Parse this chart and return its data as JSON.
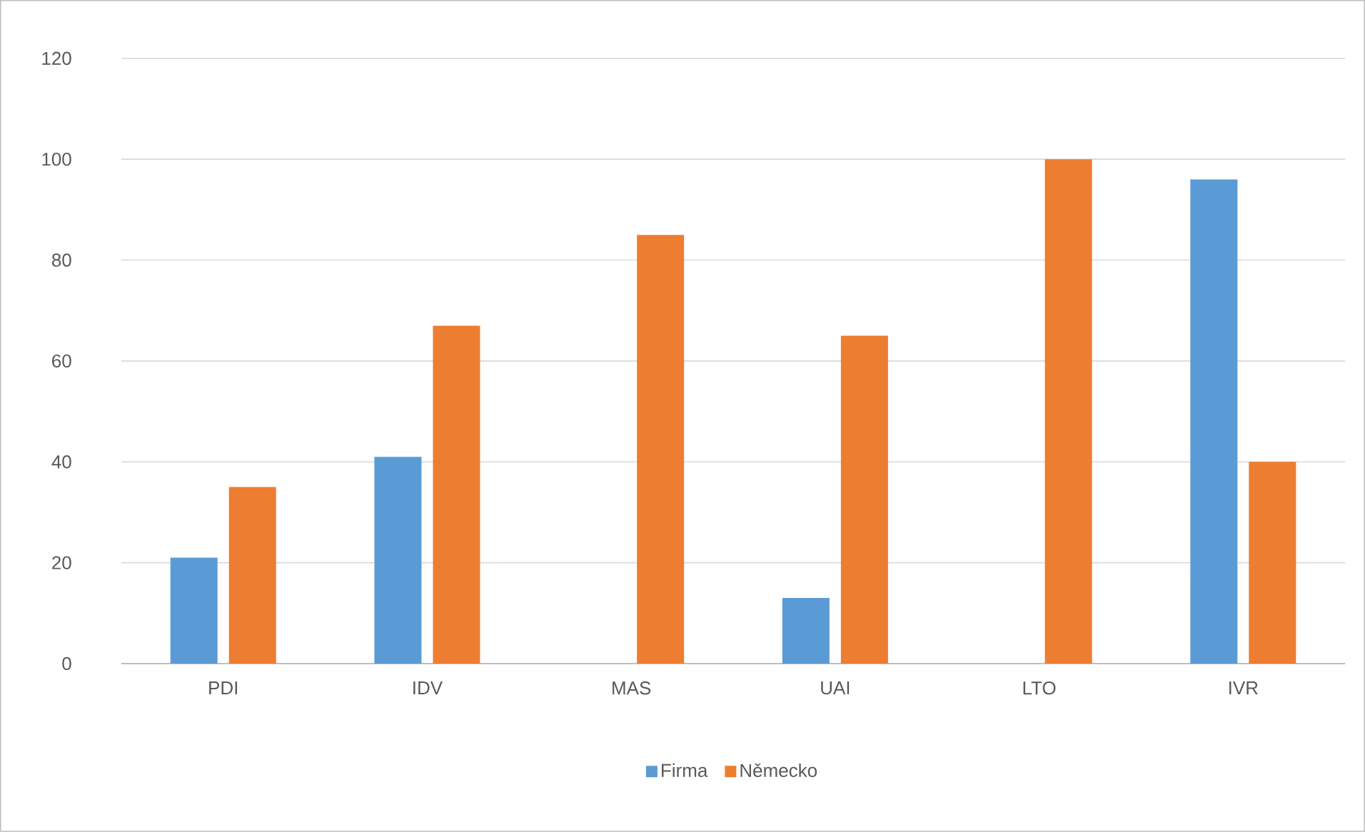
{
  "chart_data": {
    "type": "bar",
    "categories": [
      "PDI",
      "IDV",
      "MAS",
      "UAI",
      "LTO",
      "IVR"
    ],
    "series": [
      {
        "name": "Firma",
        "color": "#5b9bd5",
        "values": [
          21,
          41,
          null,
          13,
          null,
          96
        ]
      },
      {
        "name": "Německo",
        "color": "#ed7d31",
        "values": [
          35,
          67,
          85,
          65,
          100,
          40
        ]
      }
    ],
    "ylim": [
      0,
      120
    ],
    "yticks": [
      0,
      20,
      40,
      60,
      80,
      100,
      120
    ],
    "grid": "y",
    "legend": "bottom"
  }
}
